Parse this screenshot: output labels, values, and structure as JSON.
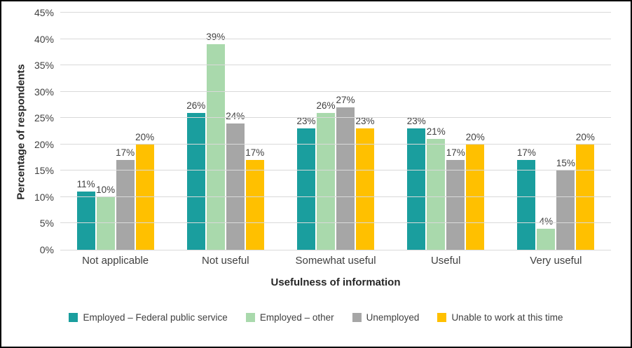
{
  "chart_data": {
    "type": "bar",
    "title": "",
    "xlabel": "Usefulness of information",
    "ylabel": "Percentage of respondents",
    "categories": [
      "Not applicable",
      "Not useful",
      "Somewhat useful",
      "Useful",
      "Very useful"
    ],
    "series": [
      {
        "name": "Employed – Federal public service",
        "color": "#1A9E9E",
        "values": [
          11,
          26,
          23,
          23,
          17
        ]
      },
      {
        "name": "Employed – other",
        "color": "#A9D9AC",
        "values": [
          10,
          39,
          26,
          21,
          4
        ]
      },
      {
        "name": "Unemployed",
        "color": "#A6A6A6",
        "values": [
          17,
          24,
          27,
          17,
          15
        ]
      },
      {
        "name": "Unable to work at this time",
        "color": "#FFC000",
        "values": [
          20,
          17,
          23,
          20,
          20
        ]
      }
    ],
    "ylim": [
      0,
      45
    ],
    "yticks": [
      "0%",
      "5%",
      "10%",
      "15%",
      "20%",
      "25%",
      "30%",
      "35%",
      "40%",
      "45%"
    ],
    "value_suffix": "%",
    "grid": true,
    "legend_position": "bottom"
  }
}
